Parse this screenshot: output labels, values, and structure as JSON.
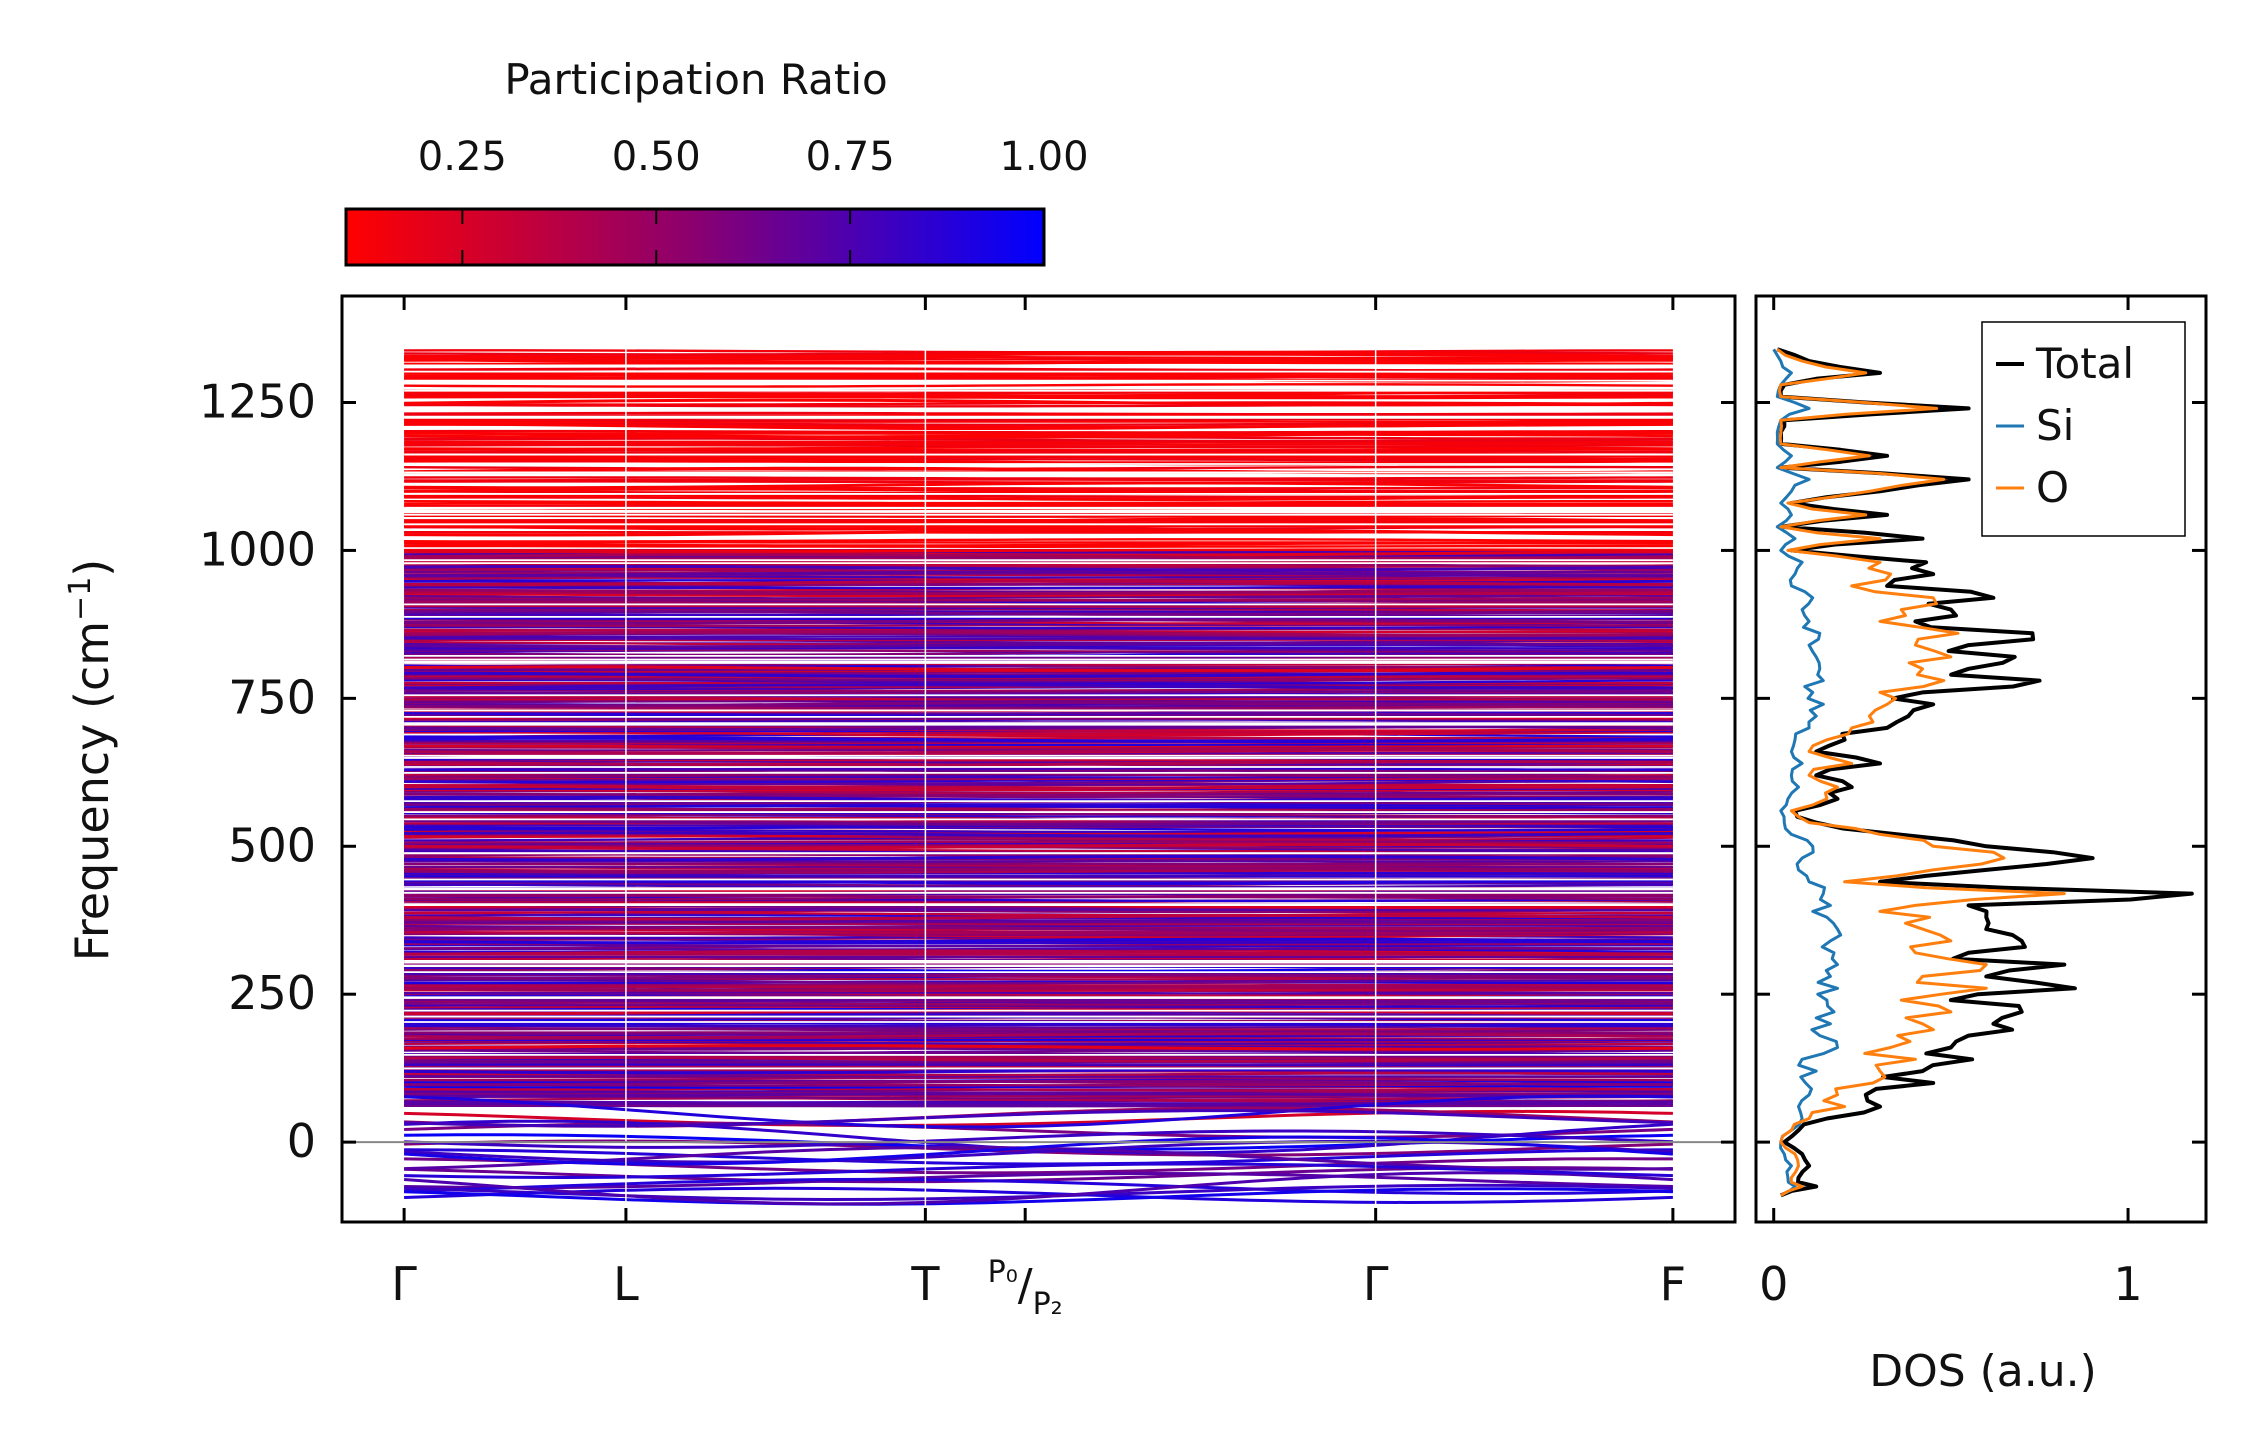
{
  "chart_data": [
    {
      "type": "line",
      "panel": "phonon-band-structure",
      "ylabel_main": "Frequency (cm",
      "ylabel_sup": "−1",
      "ylabel_end": ")",
      "ylim": [
        -135,
        1430
      ],
      "yticks": [
        0,
        250,
        500,
        750,
        1000,
        1250
      ],
      "ytick_labels": [
        "0",
        "250",
        "500",
        "750",
        "1000",
        "1250"
      ],
      "kpoint_positions": [
        0,
        1,
        2.35,
        2.8,
        4.38,
        5.72
      ],
      "kpoint_labels": [
        "Γ",
        "L",
        "T",
        "P₀/P₂",
        "Γ",
        "F"
      ],
      "segment_breaks": [
        1,
        2.35,
        4.38
      ],
      "zero_line": 0,
      "colorbar": {
        "title": "Participation Ratio",
        "range": [
          0.1,
          1.0
        ],
        "ticks": [
          0.25,
          0.5,
          0.75,
          1.0
        ],
        "tick_labels": [
          "0.25",
          "0.50",
          "0.75",
          "1.00"
        ],
        "low_color": "#ff0000",
        "high_color": "#0000ff",
        "location": "top-left"
      },
      "bands": {
        "high_frequency_dense_range": [
          1000,
          1340
        ],
        "mid_frequency_dense_range": [
          60,
          1000
        ],
        "low_frequency_range": [
          -95,
          60
        ],
        "sample_flat_bands": [
          1330,
          1320,
          1290,
          1265,
          1250,
          1225,
          1210,
          1195,
          1160,
          1150,
          1135,
          1110,
          1100,
          1090,
          1075,
          1050,
          1040,
          1030,
          995,
          990,
          970,
          960,
          945,
          930,
          910,
          895,
          880,
          860,
          840,
          820,
          800,
          790,
          770,
          755,
          740,
          720,
          700,
          680,
          660,
          640,
          620,
          600,
          580,
          560,
          540,
          520,
          500,
          480,
          460,
          440,
          420,
          400,
          380,
          360,
          340,
          320,
          300,
          280,
          260,
          240,
          220,
          200,
          180,
          160,
          140,
          120,
          100,
          80,
          65,
          40,
          20,
          -10,
          -25,
          -40,
          -55,
          -65,
          -75,
          -85,
          -90
        ]
      }
    },
    {
      "type": "line",
      "panel": "density-of-states",
      "xlabel": "DOS (a.u.)",
      "xlim": [
        -0.05,
        1.22
      ],
      "xticks": [
        0,
        1
      ],
      "xtick_labels": [
        "0",
        "1"
      ],
      "ylim": [
        -135,
        1430
      ],
      "legend_location": "top-right",
      "series": [
        {
          "name": "Total",
          "color": "#000000",
          "freq": [
            -90,
            -75,
            -60,
            -40,
            -20,
            0,
            20,
            40,
            60,
            80,
            100,
            120,
            140,
            160,
            180,
            200,
            220,
            240,
            260,
            280,
            300,
            320,
            340,
            360,
            380,
            400,
            420,
            440,
            460,
            480,
            500,
            520,
            540,
            560,
            580,
            600,
            620,
            640,
            660,
            680,
            700,
            720,
            740,
            760,
            780,
            800,
            820,
            840,
            860,
            880,
            900,
            920,
            940,
            960,
            980,
            1000,
            1020,
            1040,
            1060,
            1080,
            1100,
            1120,
            1140,
            1160,
            1180,
            1200,
            1220,
            1240,
            1260,
            1280,
            1300,
            1320,
            1340
          ],
          "dos": [
            0.02,
            0.12,
            0.07,
            0.1,
            0.08,
            0.03,
            0.07,
            0.15,
            0.3,
            0.26,
            0.45,
            0.42,
            0.56,
            0.5,
            0.55,
            0.62,
            0.7,
            0.5,
            0.85,
            0.6,
            0.82,
            0.55,
            0.7,
            0.6,
            0.6,
            0.55,
            1.18,
            0.3,
            0.6,
            0.9,
            0.6,
            0.35,
            0.12,
            0.06,
            0.18,
            0.22,
            0.12,
            0.3,
            0.12,
            0.2,
            0.32,
            0.38,
            0.45,
            0.42,
            0.75,
            0.55,
            0.68,
            0.55,
            0.73,
            0.4,
            0.5,
            0.62,
            0.32,
            0.45,
            0.43,
            0.05,
            0.42,
            0.02,
            0.32,
            0.05,
            0.3,
            0.55,
            0.02,
            0.32,
            0.02,
            0.02,
            0.03,
            0.55,
            0.02,
            0.03,
            0.3,
            0.1,
            0.01
          ]
        },
        {
          "name": "Si",
          "color": "#1f77b4",
          "freq": [
            -90,
            -75,
            -60,
            -40,
            -20,
            0,
            20,
            40,
            60,
            80,
            100,
            120,
            140,
            160,
            180,
            200,
            220,
            240,
            260,
            280,
            300,
            320,
            340,
            360,
            380,
            400,
            420,
            440,
            460,
            480,
            500,
            520,
            540,
            560,
            580,
            600,
            620,
            640,
            660,
            680,
            700,
            720,
            740,
            760,
            780,
            800,
            820,
            840,
            860,
            880,
            900,
            920,
            940,
            960,
            980,
            1000,
            1020,
            1040,
            1060,
            1080,
            1100,
            1120,
            1140,
            1160,
            1180,
            1200,
            1220,
            1240,
            1260,
            1280,
            1300,
            1320,
            1340
          ],
          "dos": [
            0.02,
            0.06,
            0.04,
            0.05,
            0.03,
            0.02,
            0.05,
            0.08,
            0.07,
            0.1,
            0.09,
            0.12,
            0.08,
            0.18,
            0.13,
            0.16,
            0.17,
            0.15,
            0.18,
            0.16,
            0.18,
            0.17,
            0.16,
            0.18,
            0.15,
            0.16,
            0.14,
            0.1,
            0.07,
            0.08,
            0.11,
            0.05,
            0.03,
            0.02,
            0.04,
            0.07,
            0.05,
            0.08,
            0.05,
            0.06,
            0.1,
            0.12,
            0.14,
            0.11,
            0.14,
            0.13,
            0.12,
            0.1,
            0.13,
            0.1,
            0.08,
            0.11,
            0.05,
            0.06,
            0.08,
            0.02,
            0.06,
            0.01,
            0.05,
            0.02,
            0.05,
            0.1,
            0.01,
            0.05,
            0.01,
            0.01,
            0.02,
            0.1,
            0.01,
            0.02,
            0.05,
            0.02,
            0.0
          ]
        },
        {
          "name": "O",
          "color": "#ff7f0e",
          "freq": [
            -90,
            -75,
            -60,
            -40,
            -20,
            0,
            20,
            40,
            60,
            80,
            100,
            120,
            140,
            160,
            180,
            200,
            220,
            240,
            260,
            280,
            300,
            320,
            340,
            360,
            380,
            400,
            420,
            440,
            460,
            480,
            500,
            520,
            540,
            560,
            580,
            600,
            620,
            640,
            660,
            680,
            700,
            720,
            740,
            760,
            780,
            800,
            820,
            840,
            860,
            880,
            900,
            920,
            940,
            960,
            980,
            1000,
            1020,
            1040,
            1060,
            1080,
            1100,
            1120,
            1140,
            1160,
            1180,
            1200,
            1220,
            1240,
            1260,
            1280,
            1300,
            1320,
            1340
          ],
          "dos": [
            0.02,
            0.08,
            0.05,
            0.07,
            0.06,
            0.02,
            0.05,
            0.1,
            0.2,
            0.18,
            0.28,
            0.3,
            0.4,
            0.33,
            0.35,
            0.42,
            0.5,
            0.36,
            0.6,
            0.42,
            0.6,
            0.4,
            0.5,
            0.42,
            0.44,
            0.4,
            0.82,
            0.2,
            0.45,
            0.65,
            0.45,
            0.3,
            0.1,
            0.05,
            0.15,
            0.18,
            0.1,
            0.22,
            0.1,
            0.15,
            0.22,
            0.27,
            0.32,
            0.3,
            0.48,
            0.42,
            0.5,
            0.4,
            0.52,
            0.3,
            0.36,
            0.45,
            0.22,
            0.33,
            0.3,
            0.04,
            0.3,
            0.02,
            0.26,
            0.04,
            0.27,
            0.48,
            0.02,
            0.27,
            0.02,
            0.02,
            0.02,
            0.46,
            0.02,
            0.02,
            0.26,
            0.08,
            0.01
          ]
        }
      ]
    }
  ]
}
